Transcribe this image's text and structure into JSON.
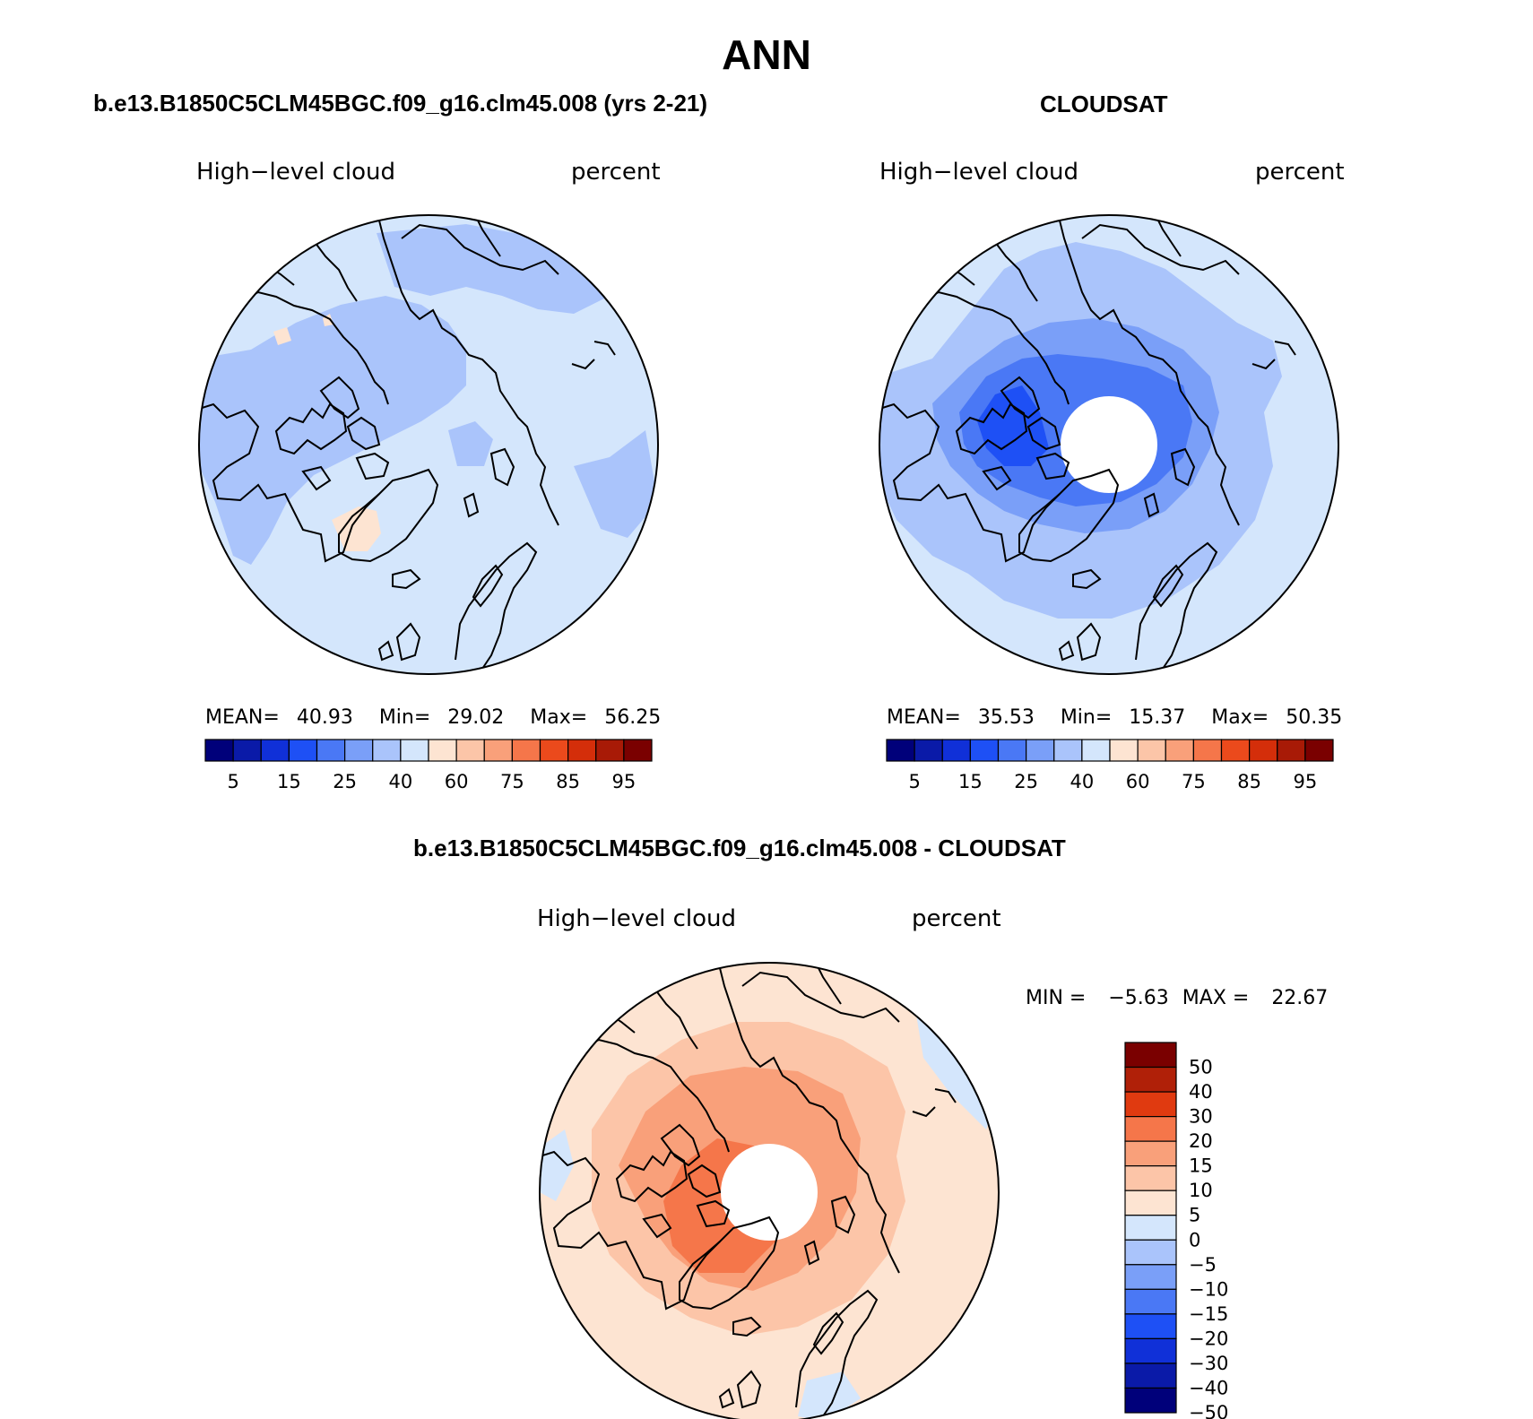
{
  "page_title": "ANN",
  "panels": [
    {
      "title": "b.e13.B1850C5CLM45BGC.f09_g16.clm45.008 (yrs 2-21)",
      "variable": "High−level cloud",
      "units": "percent",
      "stats": {
        "mean_label": "MEAN=",
        "mean": "40.93",
        "min_label": "Min=",
        "min": "29.02",
        "max_label": "Max=",
        "max": "56.25"
      },
      "colorbar_ticks": [
        "5",
        "15",
        "25",
        "40",
        "60",
        "75",
        "85",
        "95"
      ]
    },
    {
      "title": "CLOUDSAT",
      "variable": "High−level cloud",
      "units": "percent",
      "stats": {
        "mean_label": "MEAN=",
        "mean": "35.53",
        "min_label": "Min=",
        "min": "15.37",
        "max_label": "Max=",
        "max": "50.35"
      },
      "colorbar_ticks": [
        "5",
        "15",
        "25",
        "40",
        "60",
        "75",
        "85",
        "95"
      ]
    }
  ],
  "diff_panel": {
    "title": "b.e13.B1850C5CLM45BGC.f09_g16.clm45.008 - CLOUDSAT",
    "variable": "High−level cloud",
    "units": "percent",
    "min_label": "MIN =",
    "min": "−5.63",
    "max_label": "MAX =",
    "max": "22.67",
    "colorbar_ticks": [
      "50",
      "40",
      "30",
      "20",
      "15",
      "10",
      "5",
      "0",
      "−5",
      "−10",
      "−15",
      "−20",
      "−30",
      "−40",
      "−50"
    ]
  },
  "colors": {
    "abs_scale": [
      "#00007a",
      "#0a1aa8",
      "#1030d8",
      "#1e50f5",
      "#4a78f5",
      "#7a9ff8",
      "#aac4fb",
      "#d4e6fc",
      "#fde4d2",
      "#fcc5a8",
      "#f9a07a",
      "#f5764a",
      "#eb4a1c",
      "#d42e0a",
      "#a81a06",
      "#7a0000"
    ],
    "diff_scale": [
      "#7a0000",
      "#b02008",
      "#e03a10",
      "#f5764a",
      "#f9a07a",
      "#fcc5a8",
      "#fde4d2",
      "#d4e6fc",
      "#aac4fb",
      "#7a9ff8",
      "#4a78f5",
      "#1e50f5",
      "#1030d8",
      "#0a1aa8",
      "#00007a"
    ],
    "coast": "#000000"
  }
}
